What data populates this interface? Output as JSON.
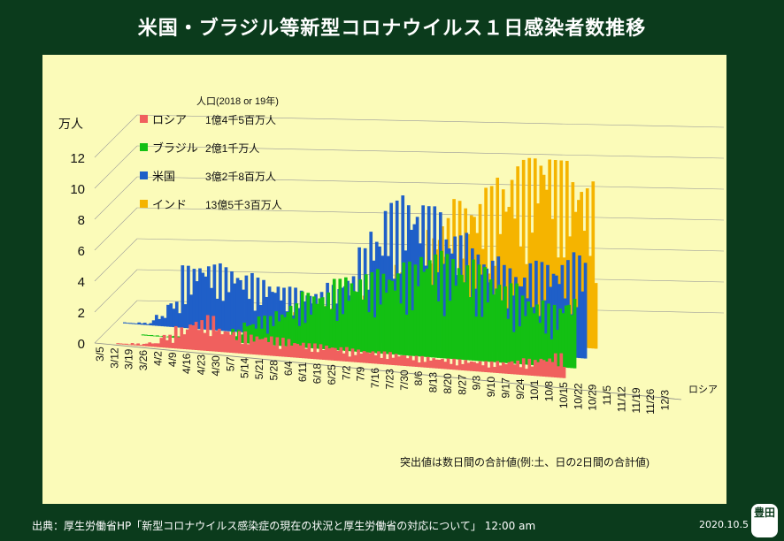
{
  "title": "米国・ブラジル等新型コロナウイルス１日感染者数推移",
  "footer": {
    "source": "出典：厚生労働省HP「新型コロナウイルス感染症の現在の状況と厚生労働省の対応について」 12:00 am",
    "date": "2020.10.5"
  },
  "logo_text": "豊田",
  "note": "突出値は数日間の合計値(例:土、日の2日間の合計値)",
  "legend_header": "人口(2018 or 19年)",
  "colors": {
    "ロシア": "#f0605e",
    "ブラジル": "#13c013",
    "米国": "#1f5fc8",
    "インド": "#f5b400"
  },
  "chart_data": {
    "type": "bar",
    "subtype": "3d-stacked-depth",
    "ylabel": "万人",
    "ylim": [
      0,
      12
    ],
    "yticks": [
      "0",
      "2",
      "4",
      "6",
      "8",
      "10",
      "12"
    ],
    "depth_axis_label": "ロシア",
    "x_tick_labels": [
      "3/5",
      "3/12",
      "3/19",
      "3/26",
      "4/2",
      "4/9",
      "4/16",
      "4/23",
      "4/30",
      "5/7",
      "5/14",
      "5/21",
      "5/28",
      "6/4",
      "6/11",
      "6/18",
      "6/25",
      "7/2",
      "7/9",
      "7/16",
      "7/23",
      "7/30",
      "8/6",
      "8/13",
      "8/20",
      "8/27",
      "9/3",
      "9/10",
      "9/17",
      "9/24",
      "10/1",
      "10/8",
      "10/15",
      "10/22",
      "10/29",
      "11/5",
      "11/12",
      "11/19",
      "11/26",
      "12/3"
    ],
    "legend": [
      {
        "name": "ロシア",
        "population": "1億4千5百万人"
      },
      {
        "name": "ブラジル",
        "population": "2億1千万人"
      },
      {
        "name": "米国",
        "population": "3億2千8百万人"
      },
      {
        "name": "インド",
        "population": "13億5千3百万人"
      }
    ],
    "series": [
      {
        "name": "ロシア",
        "weekly_values": [
          0.0,
          0.05,
          0.1,
          0.2,
          0.6,
          1.0,
          1.4,
          1.6,
          1.1,
          1.0,
          0.9,
          0.9,
          0.85,
          0.75,
          0.7,
          0.7,
          0.65,
          0.6,
          0.6,
          0.58,
          0.55,
          0.5,
          0.5,
          0.5,
          0.49,
          0.5,
          0.5,
          0.55,
          0.65,
          0.75,
          0.9,
          1.1
        ]
      },
      {
        "name": "ブラジル",
        "weekly_values": [
          0.0,
          0.0,
          0.05,
          0.05,
          0.1,
          0.15,
          0.2,
          0.3,
          0.6,
          1.0,
          1.3,
          1.6,
          2.0,
          2.5,
          2.7,
          3.2,
          3.4,
          3.6,
          3.8,
          3.9,
          4.2,
          4.9,
          4.8,
          4.7,
          4.6,
          4.3,
          4.0,
          3.6,
          3.2,
          3.0,
          2.8,
          3.3
        ]
      },
      {
        "name": "米国",
        "weekly_values": [
          0.05,
          0.1,
          0.5,
          1.2,
          2.8,
          3.1,
          3.0,
          2.9,
          2.7,
          2.5,
          2.4,
          2.2,
          2.2,
          2.1,
          2.5,
          3.0,
          4.2,
          5.2,
          6.4,
          6.8,
          6.6,
          6.3,
          5.5,
          5.2,
          4.6,
          4.3,
          3.9,
          3.8,
          4.2,
          4.3,
          4.4,
          4.7
        ]
      },
      {
        "name": "インド",
        "weekly_values": [
          0.0,
          0.0,
          0.0,
          0.0,
          0.0,
          0.05,
          0.1,
          0.2,
          0.3,
          0.4,
          0.6,
          0.7,
          0.9,
          1.1,
          1.4,
          1.8,
          2.2,
          2.6,
          3.3,
          4.0,
          4.9,
          5.5,
          6.2,
          6.5,
          6.9,
          7.5,
          8.2,
          9.0,
          9.2,
          8.6,
          8.0,
          7.5
        ]
      }
    ]
  }
}
